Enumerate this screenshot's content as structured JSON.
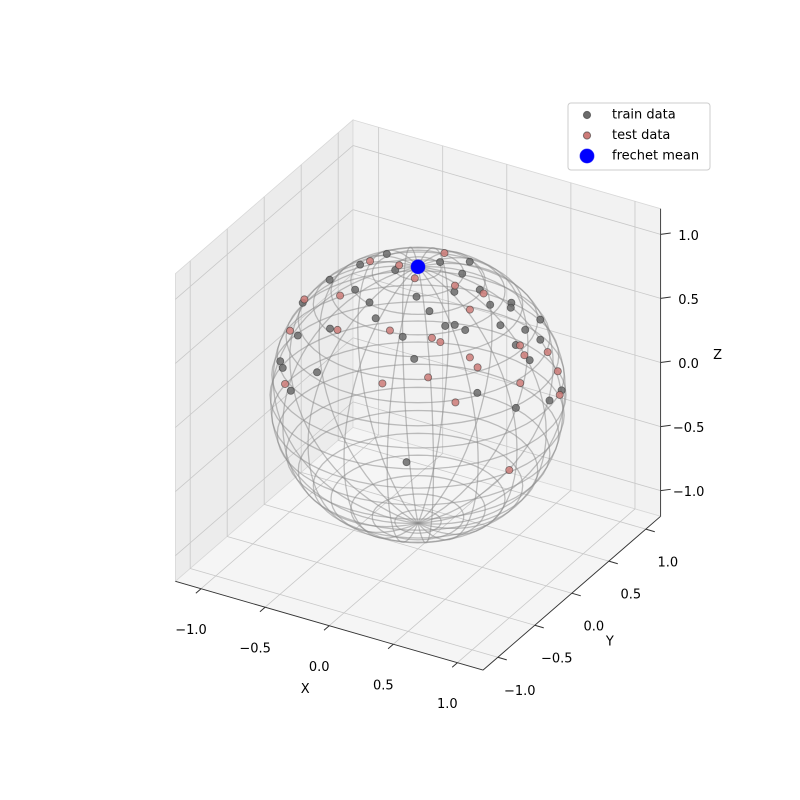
{
  "chart_data": {
    "type": "scatter3d",
    "xlabel": "X",
    "ylabel": "Y",
    "zlabel": "Z",
    "xlim": [
      -1.2,
      1.2
    ],
    "ylim": [
      -1.2,
      1.2
    ],
    "zlim": [
      -1.2,
      1.2
    ],
    "xticks": [
      {
        "value": -1,
        "label": "−1.0"
      },
      {
        "value": -0.5,
        "label": "−0.5"
      },
      {
        "value": 0,
        "label": "0.0"
      },
      {
        "value": 0.5,
        "label": "0.5"
      },
      {
        "value": 1,
        "label": "1.0"
      }
    ],
    "yticks": [
      {
        "value": -1,
        "label": "−1.0"
      },
      {
        "value": -0.5,
        "label": "−0.5"
      },
      {
        "value": 0,
        "label": "0.0"
      },
      {
        "value": 0.5,
        "label": "0.5"
      },
      {
        "value": 1,
        "label": "1.0"
      }
    ],
    "zticks": [
      {
        "value": -1,
        "label": "−1.0"
      },
      {
        "value": -0.5,
        "label": "−0.5"
      },
      {
        "value": 0,
        "label": "0.0"
      },
      {
        "value": 0.5,
        "label": "0.5"
      },
      {
        "value": 1,
        "label": "1.0"
      }
    ],
    "grid": true,
    "legend": "upper right",
    "series": [
      {
        "name": "train data",
        "color": "#6b6b6b",
        "x": [
          0.43,
          -0.32,
          -0.53,
          0.74,
          0.92,
          0.98,
          0.93,
          0.21,
          0.34,
          0.46,
          0.53,
          0.66,
          0.75,
          0.81,
          0.78,
          0.86,
          -0.03,
          -0.34,
          -0.62,
          -0.68,
          -0.74,
          -0.13,
          0.28,
          0.42,
          0.54,
          0.59,
          0.27,
          0.43,
          -0.44,
          -0.62,
          -0.12,
          0.08,
          0.19,
          0.62,
          0.7,
          -0.3,
          -0.83,
          0.15,
          -0.33,
          0.33
        ],
        "y": [
          -0.9,
          -0.81,
          -0.8,
          -0.48,
          -0.27,
          0.08,
          0.33,
          -0.57,
          -0.64,
          -0.3,
          -0.28,
          -0.03,
          0.15,
          0.25,
          -0.03,
          0.02,
          -0.52,
          -0.6,
          -0.55,
          -0.65,
          -0.58,
          -0.43,
          -0.33,
          -0.36,
          0.04,
          0.24,
          0.13,
          0.09,
          -0.02,
          -0.12,
          -0.1,
          0.16,
          0.37,
          0.18,
          0.44,
          -0.33,
          -0.12,
          -0.28,
          0.15,
          -0.08
        ],
        "z": [
          0.05,
          0.49,
          0.28,
          0.47,
          0.3,
          0.2,
          0.14,
          0.8,
          0.7,
          0.83,
          0.8,
          0.75,
          0.65,
          0.54,
          0.63,
          0.51,
          0.85,
          0.72,
          0.56,
          0.34,
          0.34,
          0.9,
          0.9,
          0.84,
          0.84,
          0.77,
          0.96,
          0.9,
          0.9,
          0.78,
          0.99,
          0.98,
          0.91,
          0.77,
          0.57,
          0.9,
          0.54,
          0.95,
          0.93,
          0.94
        ]
      },
      {
        "name": "test data",
        "color": "#cd7b78",
        "x": [
          0.92,
          0.19,
          0.46,
          0.65,
          0.69,
          0.63,
          0.89,
          0.9,
          0.95,
          0.38,
          0.44,
          0.11,
          -0.27,
          -0.75,
          -0.61,
          0.79,
          0.85,
          0.48,
          0.05,
          0.01,
          -0.4,
          -0.8,
          0.3,
          0.46,
          -0.13,
          -0.38,
          0.83
        ],
        "y": [
          -0.36,
          -0.81,
          -0.66,
          -0.62,
          -0.39,
          -0.39,
          -0.16,
          0.33,
          0.27,
          -0.47,
          -0.46,
          -0.57,
          -0.62,
          -0.43,
          -0.74,
          0.01,
          0.28,
          -0.13,
          -0.13,
          0.34,
          -0.36,
          -0.15,
          -0.02,
          0.09,
          -0.03,
          0.01,
          0.0
        ],
        "z": [
          -0.14,
          0.55,
          0.6,
          0.44,
          0.61,
          0.67,
          0.43,
          0.28,
          0.14,
          0.79,
          0.77,
          0.82,
          0.74,
          0.5,
          0.28,
          0.61,
          0.44,
          0.87,
          0.99,
          0.94,
          0.84,
          0.59,
          0.95,
          0.88,
          0.99,
          0.93,
          0.55
        ]
      },
      {
        "name": "frechet mean",
        "color": "#0000ff",
        "x": [
          0
        ],
        "y": [
          0
        ],
        "z": [
          1
        ]
      }
    ]
  }
}
